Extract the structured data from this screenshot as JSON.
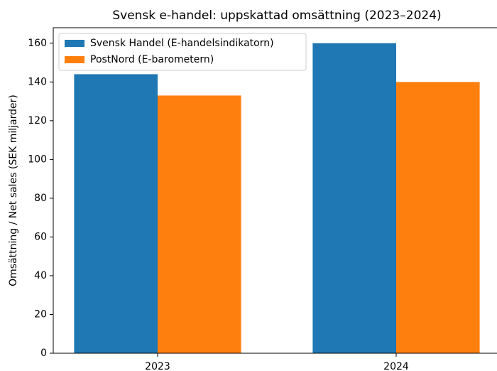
{
  "chart_data": {
    "type": "bar",
    "title": "Svensk e-handel: uppskattad omsättning (2023–2024)",
    "y_label": "Omsättning / Net sales (SEK miljarder)",
    "categories": [
      "2023",
      "2024"
    ],
    "series": [
      {
        "name": "Svensk Handel (E-handelsindikatorn)",
        "color": "#1f77b4",
        "values": [
          144,
          160
        ]
      },
      {
        "name": "PostNord (E-barometern)",
        "color": "#ff7f0e",
        "values": [
          133,
          140
        ]
      }
    ],
    "ylim": [
      0,
      168
    ],
    "yticks": [
      0,
      20,
      40,
      60,
      80,
      100,
      120,
      140,
      160
    ],
    "legend": "upper left",
    "grid": false
  }
}
